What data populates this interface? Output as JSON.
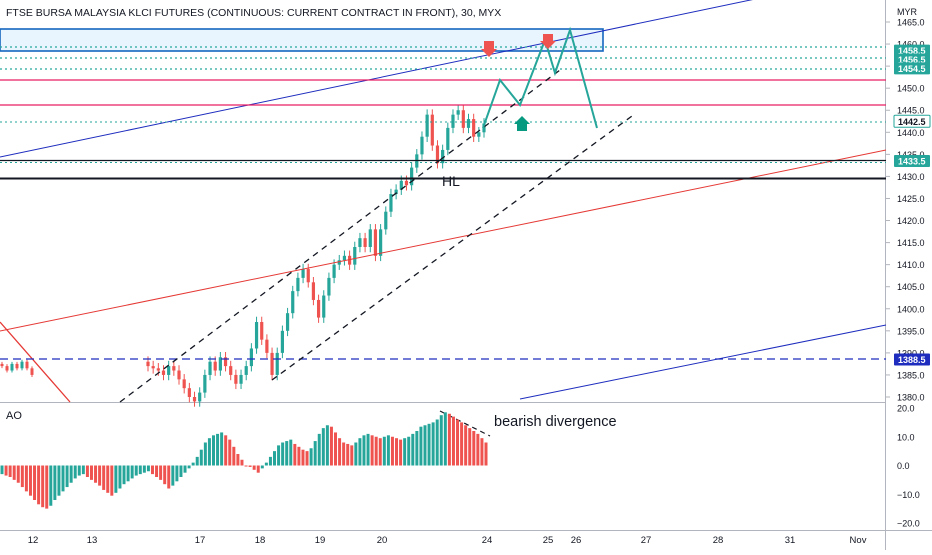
{
  "title": "FTSE BURSA MALAYSIA KLCI FUTURES (CONTINUOUS: CURRENT CONTRACT IN FRONT), 30, MYX",
  "currency": "MYR",
  "indicator_label": "AO",
  "annotations": {
    "divergence": "bearish divergence",
    "higher_low": "HL"
  },
  "colors": {
    "up": "#26a69a",
    "down": "#ef5350",
    "resistance": "#e91e63",
    "blue_line": "#1e2dbe",
    "box": "#1565c0",
    "trend_red": "#e53935",
    "projection": "#26a69a"
  },
  "chart_data": [
    {
      "type": "candlestick",
      "timeframe": "30",
      "ylim": [
        1378,
        1467
      ],
      "y_ticks": [
        1380,
        1385,
        1390,
        1395,
        1400,
        1405,
        1410,
        1415,
        1420,
        1425,
        1430,
        1435,
        1440,
        1445,
        1450,
        1455,
        1460,
        1465
      ],
      "x_ticks": [
        "12",
        "13",
        "17",
        "18",
        "19",
        "20",
        "24",
        "25",
        "26",
        "27",
        "28",
        "31",
        "Nov"
      ],
      "price_labels": [
        {
          "value": 1458.5,
          "label": "1458.5"
        },
        {
          "value": 1456.5,
          "label": "1456.5"
        },
        {
          "value": 1454.5,
          "label": "1454.5"
        },
        {
          "value": 1442.5,
          "label": "1442.5"
        },
        {
          "value": 1433.5,
          "label": "1433.5"
        },
        {
          "value": 1388.5,
          "label": "1388.5"
        }
      ],
      "horizontal_levels": [
        {
          "value": 1452.5,
          "style": "solid",
          "color": "resistance"
        },
        {
          "value": 1446,
          "style": "solid",
          "color": "resistance"
        },
        {
          "value": 1433.5,
          "style": "solid",
          "color": "black"
        },
        {
          "value": 1430,
          "style": "solid-thick",
          "color": "black"
        },
        {
          "value": 1388.5,
          "style": "dashed",
          "color": "blue"
        }
      ],
      "series": [
        {
          "name": "Close",
          "values": [
            1387,
            1386.5,
            1386,
            1385,
            1387,
            1386,
            1384,
            1382,
            1380,
            1379,
            1381,
            1385,
            1388,
            1386,
            1389,
            1387,
            1385,
            1383,
            1385,
            1387,
            1391,
            1397,
            1393,
            1390,
            1385,
            1390,
            1395,
            1399,
            1404,
            1407,
            1409,
            1406,
            1402,
            1398,
            1403,
            1407,
            1410,
            1411,
            1412,
            1410,
            1414,
            1416,
            1414,
            1418,
            1412,
            1418,
            1422,
            1426,
            1427,
            1429,
            1428,
            1432,
            1435,
            1439,
            1444,
            1437,
            1433,
            1436,
            1441,
            1444,
            1445,
            1441,
            1443,
            1439,
            1440,
            1442
          ]
        }
      ]
    },
    {
      "type": "bar",
      "name": "AO",
      "ylim": [
        -22,
        22
      ],
      "y_ticks": [
        20,
        10,
        0,
        -10,
        -20
      ],
      "values": [
        -3,
        -3.5,
        -4,
        -5,
        -6,
        -7.5,
        -9,
        -10.5,
        -12,
        -13.5,
        -14.5,
        -15,
        -14,
        -12,
        -10.5,
        -9,
        -7.5,
        -6,
        -4.5,
        -3.5,
        -3,
        -4,
        -5,
        -6,
        -7,
        -8.5,
        -9.5,
        -10.5,
        -9.5,
        -8,
        -6.5,
        -5.5,
        -4.5,
        -3.5,
        -3,
        -2.5,
        -2,
        -3,
        -4,
        -5,
        -6.5,
        -8,
        -7,
        -5.5,
        -4,
        -2.5,
        -1,
        1,
        3,
        5.5,
        8,
        9.5,
        10.5,
        11,
        11.5,
        10.5,
        9,
        6.5,
        4,
        2,
        0,
        -0.5,
        -1.5,
        -2.5,
        -1,
        1,
        3,
        5,
        7,
        8,
        8.5,
        9,
        7.5,
        6.5,
        5.5,
        5,
        6,
        8.5,
        11,
        13,
        14,
        13.5,
        11.5,
        9.5,
        8,
        7.5,
        7,
        8,
        9.5,
        10.5,
        11,
        10.5,
        10,
        9.5,
        10,
        10.5,
        10,
        9.5,
        9,
        9.5,
        10,
        11,
        12,
        13.5,
        14,
        14.5,
        15,
        16,
        17.5,
        18.5,
        18,
        17,
        16,
        15,
        14,
        13,
        12,
        11,
        9.5,
        8
      ]
    }
  ]
}
